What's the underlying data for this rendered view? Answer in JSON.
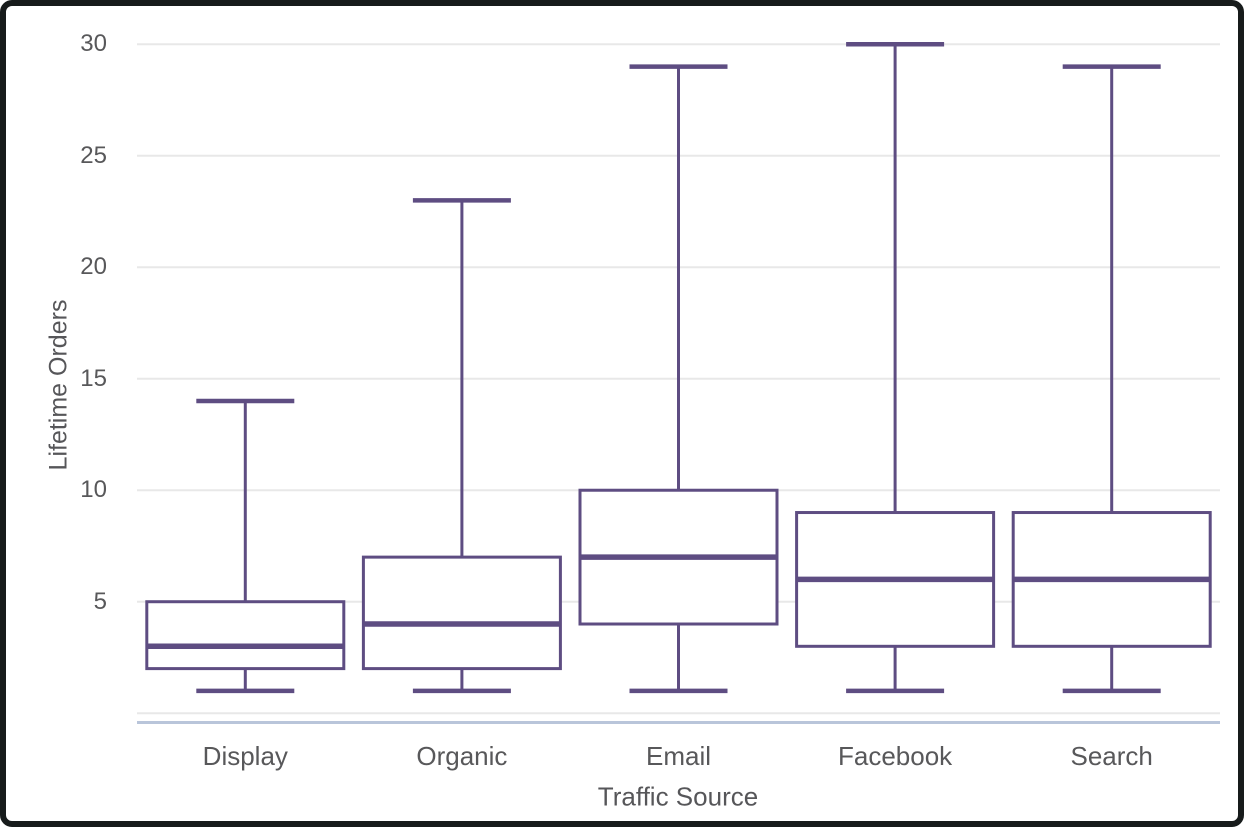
{
  "chart_data": {
    "type": "boxplot",
    "title": "",
    "xlabel": "Traffic Source",
    "ylabel": "Lifetime Orders",
    "categories": [
      "Display",
      "Organic",
      "Email",
      "Facebook",
      "Search"
    ],
    "yticks": [
      5,
      10,
      15,
      20,
      25,
      30
    ],
    "ylim": [
      0,
      30.5
    ],
    "grid": true,
    "legend": "none",
    "series": [
      {
        "name": "Display",
        "min": 1,
        "q1": 2,
        "median": 3,
        "q3": 5,
        "max": 14
      },
      {
        "name": "Organic",
        "min": 1,
        "q1": 2,
        "median": 4,
        "q3": 7,
        "max": 23
      },
      {
        "name": "Email",
        "min": 1,
        "q1": 4,
        "median": 7,
        "q3": 10,
        "max": 29
      },
      {
        "name": "Facebook",
        "min": 1,
        "q1": 3,
        "median": 6,
        "q3": 9,
        "max": 30
      },
      {
        "name": "Search",
        "min": 1,
        "q1": 3,
        "median": 6,
        "q3": 9,
        "max": 29
      }
    ],
    "colors": {
      "box_stroke": "#5E4D82",
      "box_fill": "#ffffff",
      "gridline": "#e8e8e8",
      "axis_line": "#b9c5da",
      "label_text": "#58585a",
      "background": "#ffffff",
      "frame": "#171b1b"
    }
  }
}
